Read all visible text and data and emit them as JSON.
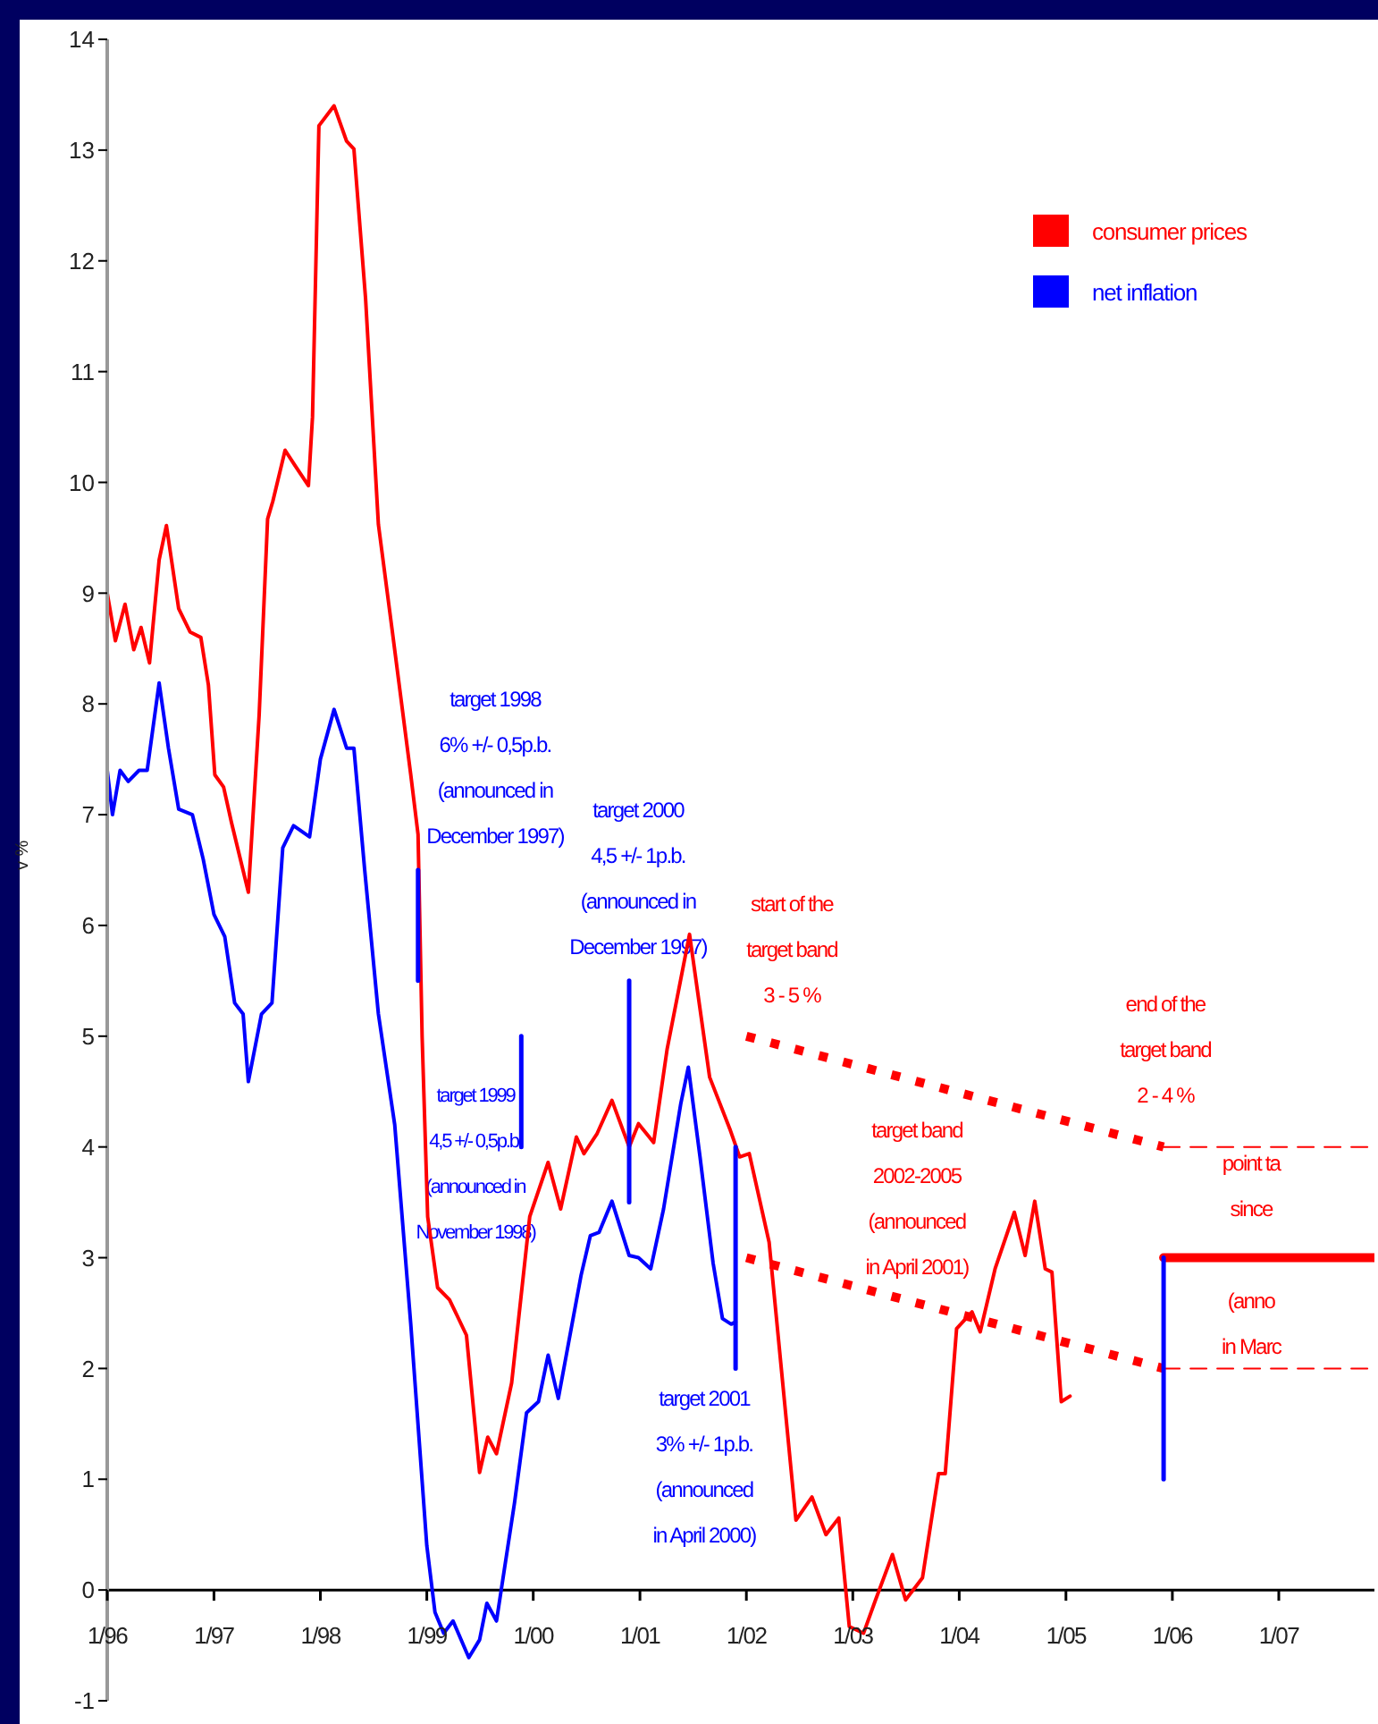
{
  "chart_data": {
    "type": "line",
    "ylabel": "v %",
    "xlim": [
      "1996-01-01",
      "2007-11-25"
    ],
    "ylim": [
      -1,
      14
    ],
    "xticks": [
      {
        "value": "1996-01",
        "label": "1/96"
      },
      {
        "value": "1997-01",
        "label": "1/97"
      },
      {
        "value": "1998-01",
        "label": "1/98"
      },
      {
        "value": "1999-01",
        "label": "1/99"
      },
      {
        "value": "2000-01",
        "label": "1/00"
      },
      {
        "value": "2001-01",
        "label": "1/01"
      },
      {
        "value": "2002-01",
        "label": "1/02"
      },
      {
        "value": "2003-01",
        "label": "1/03"
      },
      {
        "value": "2004-01",
        "label": "1/04"
      },
      {
        "value": "2005-01",
        "label": "1/05"
      },
      {
        "value": "2006-01",
        "label": "1/06"
      },
      {
        "value": "2007-01",
        "label": "1/07"
      }
    ],
    "yticks": [
      -1,
      0,
      1,
      2,
      3,
      4,
      5,
      6,
      7,
      8,
      9,
      10,
      11,
      12,
      13,
      14
    ],
    "legend": "top right",
    "series": [
      {
        "name": "consumer prices",
        "color": "#ff0000",
        "line_style": "solid",
        "x": [
          "1996-01-01",
          "1996-01-29",
          "1996-03-02",
          "1996-04-01",
          "1996-04-26",
          "1996-05-25",
          "1996-06-27",
          "1996-07-22",
          "1996-09-02",
          "1996-10-11",
          "1996-11-17",
          "1996-12-13",
          "1997-01-04",
          "1997-02-03",
          "1997-03-02",
          "1997-04-29",
          "1997-06-05",
          "1997-07-04",
          "1997-07-22",
          "1997-09-02",
          "1997-10-04",
          "1997-11-21",
          "1997-12-05",
          "1997-12-27",
          "1998-02-17",
          "1998-04-01",
          "1998-04-26",
          "1998-06-05",
          "1998-07-19",
          "1998-09-05",
          "1998-11-07",
          "1998-12-02",
          "1998-12-16",
          "1999-01-04",
          "1999-02-07",
          "1999-03-20",
          "1999-05-17",
          "1999-07-01",
          "1999-07-29",
          "1999-08-28",
          "1999-10-19",
          "1999-12-20",
          "2000-02-21",
          "2000-04-04",
          "2000-05-28",
          "2000-06-23",
          "2000-08-07",
          "2000-09-27",
          "2000-11-25",
          "2000-12-27",
          "2001-02-17",
          "2001-04-04",
          "2001-06-20",
          "2001-08-28",
          "2001-11-07",
          "2001-12-09",
          "2002-01-11",
          "2002-03-20",
          "2002-04-22",
          "2002-06-20",
          "2002-08-14",
          "2002-10-01",
          "2002-11-14",
          "2002-12-20",
          "2003-02-07",
          "2003-03-20",
          "2003-05-17",
          "2003-07-01",
          "2003-08-28",
          "2003-10-22",
          "2003-11-14",
          "2003-12-23",
          "2004-02-14",
          "2004-03-13",
          "2004-05-03",
          "2004-07-08",
          "2004-08-14",
          "2004-09-16",
          "2004-10-22",
          "2004-11-14",
          "2004-12-16",
          "2005-01-15"
        ],
        "values": [
          9.0,
          8.57,
          8.9,
          8.49,
          8.69,
          8.37,
          9.3,
          9.61,
          8.86,
          8.65,
          8.6,
          8.17,
          7.36,
          7.25,
          6.93,
          6.3,
          7.9,
          9.67,
          9.83,
          10.29,
          10.16,
          9.97,
          10.59,
          13.22,
          13.4,
          13.08,
          13.01,
          11.66,
          9.62,
          8.65,
          7.36,
          6.82,
          4.99,
          3.37,
          2.73,
          2.62,
          2.3,
          1.06,
          1.38,
          1.23,
          1.87,
          3.37,
          3.86,
          3.44,
          4.09,
          3.94,
          4.12,
          4.42,
          4.0,
          4.21,
          4.04,
          4.88,
          5.92,
          4.63,
          4.15,
          3.91,
          3.94,
          3.14,
          2.24,
          0.63,
          0.84,
          0.5,
          0.65,
          -0.33,
          -0.39,
          -0.09,
          0.32,
          -0.09,
          0.11,
          1.05,
          1.05,
          2.36,
          2.51,
          2.33,
          2.9,
          3.41,
          3.02,
          3.51,
          2.9,
          2.87,
          1.7,
          1.75
        ]
      },
      {
        "name": "net inflation",
        "color": "#0000ff",
        "line_style": "solid",
        "x": [
          "1996-01-01",
          "1996-01-19",
          "1996-02-14",
          "1996-03-13",
          "1996-04-19",
          "1996-05-17",
          "1996-06-27",
          "1996-07-29",
          "1996-09-02",
          "1996-10-19",
          "1996-11-25",
          "1997-01-01",
          "1997-02-07",
          "1997-03-13",
          "1997-04-11",
          "1997-04-29",
          "1997-06-13",
          "1997-07-19",
          "1997-08-25",
          "1997-10-01",
          "1997-11-25",
          "1998-01-01",
          "1998-02-17",
          "1998-04-01",
          "1998-04-26",
          "1998-06-02",
          "1998-07-19",
          "1998-09-13",
          "1998-11-07",
          "1999-01-01",
          "1999-01-29",
          "1999-02-28",
          "1999-04-01",
          "1999-05-25",
          "1999-07-01",
          "1999-07-26",
          "1999-08-28",
          "1999-10-29",
          "1999-12-09",
          "2000-01-19",
          "2000-02-21",
          "2000-03-27",
          "2000-06-13",
          "2000-07-15",
          "2000-08-14",
          "2000-09-27",
          "2000-11-25",
          "2000-12-27",
          "2001-02-07",
          "2001-03-23",
          "2001-05-21",
          "2001-06-16",
          "2001-07-26",
          "2001-09-09",
          "2001-10-11",
          "2001-11-10",
          "2001-11-25"
        ],
        "values": [
          7.4,
          7.0,
          7.4,
          7.3,
          7.4,
          7.4,
          8.19,
          7.6,
          7.05,
          7.0,
          6.6,
          6.1,
          5.9,
          5.3,
          5.2,
          4.59,
          5.2,
          5.3,
          6.7,
          6.9,
          6.8,
          7.5,
          7.95,
          7.6,
          7.6,
          6.5,
          5.2,
          4.2,
          2.4,
          0.4,
          -0.2,
          -0.39,
          -0.28,
          -0.61,
          -0.45,
          -0.12,
          -0.28,
          0.79,
          1.6,
          1.7,
          2.12,
          1.73,
          2.84,
          3.2,
          3.23,
          3.51,
          3.02,
          3.0,
          2.9,
          3.44,
          4.39,
          4.72,
          3.91,
          2.95,
          2.45,
          2.4,
          2.42
        ]
      },
      {
        "color": "#0000ff",
        "line_style": "solid",
        "x": [
          "1998-12-02",
          "1998-12-02"
        ],
        "values": [
          5.5,
          6.5
        ]
      },
      {
        "color": "#0000ff",
        "line_style": "solid",
        "x": [
          "1999-11-21",
          "1999-11-21"
        ],
        "values": [
          4,
          5
        ]
      },
      {
        "color": "#0000ff",
        "line_style": "solid",
        "x": [
          "2000-11-25",
          "2000-11-25"
        ],
        "values": [
          3.5,
          5.5
        ]
      },
      {
        "color": "#0000ff",
        "line_style": "solid",
        "x": [
          "2001-11-25",
          "2001-11-25"
        ],
        "values": [
          2,
          4
        ]
      },
      {
        "color": "#ff0000",
        "line_style": "dotted",
        "x": [
          "2002-01-01",
          "2005-12-02"
        ],
        "values": [
          5,
          4
        ]
      },
      {
        "color": "#ff0000",
        "line_style": "dotted",
        "x": [
          "2002-01-01",
          "2005-12-02"
        ],
        "values": [
          3,
          2
        ]
      },
      {
        "color": "#ff0000",
        "line_style": "dashed",
        "x": [
          "2005-12-02",
          "2007-11-25"
        ],
        "values": [
          4,
          4
        ]
      },
      {
        "color": "#ff0000",
        "line_style": "dashed",
        "x": [
          "2005-12-02",
          "2007-11-25"
        ],
        "values": [
          2,
          2
        ]
      },
      {
        "color": "#ff0000",
        "line_style": "solid",
        "x": [
          "2005-12-02",
          "2007-11-25"
        ],
        "values": [
          3,
          3
        ]
      },
      {
        "color": "#0000ff",
        "line_style": "solid",
        "x": [
          "2005-12-02",
          "2005-12-02"
        ],
        "values": [
          1,
          3
        ]
      }
    ],
    "annotations": [
      "target 1998\n6% +/- 0,5p.b.\n(announced in\nDecember 1997)",
      "target 1999\n4,5 +/- 0,5p.b.\n(announced in\nNovember 1998)",
      "target  2000\n4,5 +/- 1p.b.\n(announced in\nDecember 1997)",
      "target 2001\n3% +/- 1p.b.\n(announced\nin April 2000)",
      "start of the\ntarget band\n3 - 5 %",
      "target band\n2002-2005\n(announced\nin April 2001)",
      "end of the\ntarget band\n2 - 4 %",
      "point ta\nsince",
      "(anno\nin Marc"
    ]
  }
}
